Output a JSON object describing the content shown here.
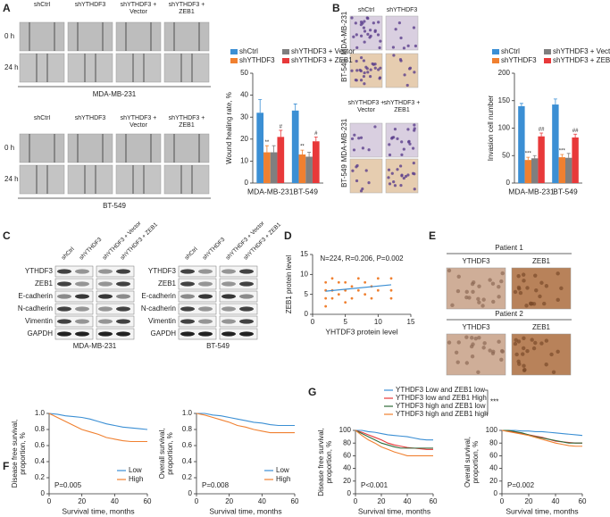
{
  "panel_labels": [
    "A",
    "B",
    "C",
    "D",
    "E",
    "F",
    "G"
  ],
  "panel_a": {
    "groups": [
      "shCtrl",
      "shYTHDF3",
      "shYTHDF3 + Vector",
      "shYTHDF3 + ZEB1"
    ],
    "times": [
      "0 h",
      "24 h"
    ],
    "cell_lines": [
      "MDA-MB-231",
      "BT-549"
    ]
  },
  "panel_b": {
    "groups": [
      "shCtrl",
      "shYTHDF3",
      "shYTHDF3 + Vector",
      "shYTHDF3 + ZEB1"
    ],
    "cell_lines": [
      "MDA-MB-231",
      "BT-549"
    ]
  },
  "panel_c": {
    "groups": [
      "shCtrl",
      "shYTHDF3",
      "shYTHDF3 + Vector",
      "shYTHDF3 + ZEB1"
    ],
    "proteins": [
      "YTHDF3",
      "ZEB1",
      "E-cadherin",
      "N-cadherin",
      "Vimentin",
      "GAPDH"
    ],
    "cell_lines": [
      "MDA-MB-231",
      "BT-549"
    ]
  },
  "panel_e": {
    "patients": [
      "Patient 1",
      "Patient 2"
    ],
    "stains": [
      "YTHDF3",
      "ZEB1"
    ]
  },
  "chart_data": [
    {
      "type": "bar",
      "ylabel": "Wound healing rate, %",
      "categories": [
        "MDA-MB-231",
        "BT-549"
      ],
      "ylim": [
        0,
        50
      ],
      "yticks": [
        0,
        10,
        20,
        30,
        40,
        50
      ],
      "series": [
        {
          "name": "shCtrl",
          "color": "#3b8fd4",
          "values": [
            32,
            33
          ],
          "errors": [
            6,
            3
          ]
        },
        {
          "name": "shYTHDF3",
          "color": "#f08030",
          "values": [
            14,
            13
          ],
          "errors": [
            3,
            2
          ],
          "annotations": [
            "**",
            "**"
          ]
        },
        {
          "name": "shYTHDF3 + Vector",
          "color": "#7f7f7f",
          "values": [
            14,
            12
          ],
          "errors": [
            3,
            2
          ]
        },
        {
          "name": "shYTHDF3 + ZEB1",
          "color": "#e8393a",
          "values": [
            21,
            19
          ],
          "errors": [
            3,
            2
          ],
          "annotations": [
            "#",
            "#"
          ]
        }
      ]
    },
    {
      "type": "bar",
      "ylabel": "Invasion cell number",
      "categories": [
        "MDA-MB-231",
        "BT-549"
      ],
      "ylim": [
        0,
        200
      ],
      "yticks": [
        0,
        50,
        100,
        150,
        200
      ],
      "series": [
        {
          "name": "shCtrl",
          "color": "#3b8fd4",
          "values": [
            140,
            143
          ],
          "errors": [
            5,
            10
          ]
        },
        {
          "name": "shYTHDF3",
          "color": "#f08030",
          "values": [
            42,
            47
          ],
          "errors": [
            5,
            5
          ],
          "annotations": [
            "***",
            "***"
          ]
        },
        {
          "name": "shYTHDF3 + Vector",
          "color": "#7f7f7f",
          "values": [
            45,
            46
          ],
          "errors": [
            5,
            8
          ]
        },
        {
          "name": "shYTHDF3 + ZEB1",
          "color": "#e8393a",
          "values": [
            85,
            83
          ],
          "errors": [
            6,
            6
          ],
          "annotations": [
            "##",
            "##"
          ]
        }
      ]
    },
    {
      "type": "scatter",
      "title": "N=224, R=0.206, P=0.002",
      "xlabel": "YHTDF3 protein level",
      "ylabel": "ZEB1 protein level",
      "xlim": [
        0,
        15
      ],
      "xticks": [
        0,
        5,
        10,
        15
      ],
      "ylim": [
        0,
        15
      ],
      "yticks": [
        0,
        5,
        10,
        15
      ],
      "series": [
        {
          "color": "#f08030",
          "x": [
            2,
            2,
            2,
            2,
            3,
            3,
            3,
            4,
            4,
            5,
            5,
            5,
            6,
            6,
            7,
            7,
            8,
            8,
            9,
            9,
            10,
            10,
            12,
            12,
            12
          ],
          "values": [
            2,
            4,
            6,
            8,
            4,
            6,
            9,
            5,
            8,
            3,
            6,
            8,
            4,
            7,
            6,
            9,
            5,
            8,
            4,
            7,
            6,
            9,
            4,
            6,
            9
          ]
        }
      ],
      "fit_line": {
        "color": "#3b8fd4",
        "x": [
          2,
          12
        ],
        "values": [
          5.8,
          7.4
        ]
      }
    },
    {
      "type": "line",
      "ylabel": [
        "Disease free survival,",
        "proportion, %"
      ],
      "xlabel": "Survival time, months",
      "pvalue": "P=0.005",
      "xlim": [
        0,
        60
      ],
      "xticks": [
        0,
        20,
        40,
        60
      ],
      "ylim": [
        0,
        1
      ],
      "yticks": [
        0,
        0.2,
        0.4,
        0.6,
        0.8,
        {
          "value": 1,
          "label": "1.0"
        }
      ],
      "legend": "lower right",
      "x": [
        0,
        5,
        10,
        15,
        20,
        25,
        30,
        35,
        40,
        45,
        50,
        55,
        60
      ],
      "series": [
        {
          "name": "Low",
          "color": "#3b8fd4",
          "values": [
            1,
            0.99,
            0.97,
            0.96,
            0.95,
            0.93,
            0.9,
            0.87,
            0.85,
            0.83,
            0.82,
            0.81,
            0.8
          ]
        },
        {
          "name": "High",
          "color": "#f08030",
          "values": [
            1,
            0.95,
            0.9,
            0.85,
            0.8,
            0.77,
            0.74,
            0.7,
            0.68,
            0.66,
            0.65,
            0.65,
            0.65
          ]
        }
      ]
    },
    {
      "type": "line",
      "ylabel": [
        "Overall survival,",
        "proportion, %"
      ],
      "xlabel": "Survival time, months",
      "pvalue": "P=0.008",
      "xlim": [
        0,
        60
      ],
      "xticks": [
        0,
        20,
        40,
        60
      ],
      "ylim": [
        0,
        1
      ],
      "yticks": [
        0,
        0.2,
        0.4,
        0.6,
        0.8,
        {
          "value": 1,
          "label": "1.0"
        }
      ],
      "legend": "lower right",
      "x": [
        0,
        5,
        10,
        15,
        20,
        25,
        30,
        35,
        40,
        45,
        50,
        55,
        60
      ],
      "series": [
        {
          "name": "Low",
          "color": "#3b8fd4",
          "values": [
            1,
            1,
            0.98,
            0.97,
            0.95,
            0.93,
            0.91,
            0.89,
            0.88,
            0.86,
            0.85,
            0.85,
            0.85
          ]
        },
        {
          "name": "High",
          "color": "#f08030",
          "values": [
            1,
            0.98,
            0.95,
            0.92,
            0.89,
            0.85,
            0.83,
            0.8,
            0.78,
            0.76,
            0.76,
            0.76,
            0.76
          ]
        }
      ]
    },
    {
      "type": "line",
      "ylabel": [
        "Disease free survival,",
        "proportion, %"
      ],
      "xlabel": "Survival time, months",
      "pvalue": "P<0.001",
      "xlim": [
        0,
        60
      ],
      "xticks": [
        0,
        20,
        40,
        60
      ],
      "ylim": [
        0,
        100
      ],
      "yticks": [
        0,
        20,
        40,
        60,
        80,
        100
      ],
      "legend": "above",
      "legend_annotation": "***",
      "x": [
        0,
        5,
        10,
        15,
        20,
        25,
        30,
        35,
        40,
        45,
        50,
        55,
        60
      ],
      "series": [
        {
          "name": "YTHDF3 Low and ZEB1 low",
          "color": "#3b8fd4",
          "values": [
            100,
            100,
            98,
            97,
            95,
            93,
            92,
            91,
            90,
            88,
            86,
            85,
            85
          ]
        },
        {
          "name": "YTHDF3 low and ZEB1 High",
          "color": "#e8393a",
          "values": [
            100,
            97,
            93,
            89,
            85,
            80,
            77,
            75,
            73,
            72,
            71,
            70,
            70
          ]
        },
        {
          "name": "YTHDF3 high and ZEB1 low",
          "color": "#2e6b3a",
          "values": [
            100,
            95,
            90,
            85,
            80,
            77,
            74,
            72,
            72,
            72,
            72,
            72,
            72
          ]
        },
        {
          "name": "YTHDF3 high and ZEB1 high",
          "color": "#f08030",
          "values": [
            100,
            92,
            85,
            80,
            74,
            70,
            66,
            63,
            60,
            60,
            60,
            60,
            60
          ]
        }
      ]
    },
    {
      "type": "line",
      "ylabel": [
        "Overall survival,",
        "proportion, %"
      ],
      "xlabel": "Survival time, months",
      "pvalue": "P=0.002",
      "xlim": [
        0,
        60
      ],
      "xticks": [
        0,
        20,
        40,
        60
      ],
      "ylim": [
        0,
        100
      ],
      "yticks": [
        0,
        20,
        40,
        60,
        80,
        100
      ],
      "x": [
        0,
        5,
        10,
        15,
        20,
        25,
        30,
        35,
        40,
        45,
        50,
        55,
        60
      ],
      "series": [
        {
          "color": "#3b8fd4",
          "values": [
            100,
            100,
            100,
            99,
            99,
            98,
            98,
            97,
            96,
            95,
            94,
            93,
            92
          ]
        },
        {
          "color": "#e8393a",
          "values": [
            100,
            99,
            97,
            95,
            93,
            91,
            89,
            86,
            83,
            82,
            81,
            80,
            80
          ]
        },
        {
          "color": "#2e6b3a",
          "values": [
            100,
            100,
            98,
            96,
            93,
            90,
            88,
            86,
            84,
            82,
            80,
            80,
            80
          ]
        },
        {
          "color": "#f08030",
          "values": [
            100,
            98,
            96,
            94,
            92,
            89,
            86,
            83,
            80,
            78,
            76,
            75,
            75
          ]
        }
      ]
    }
  ]
}
